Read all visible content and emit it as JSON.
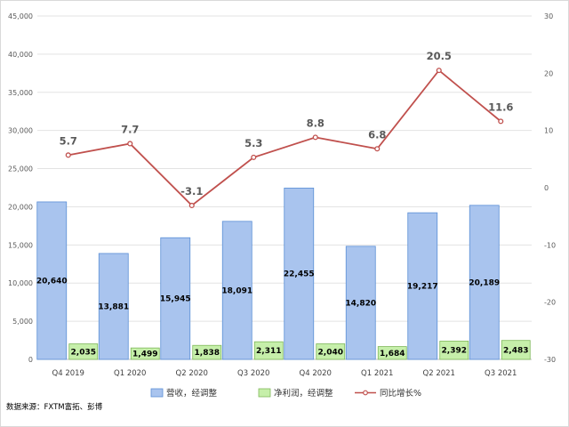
{
  "chart_data": {
    "type": "bar",
    "categories": [
      "Q4 2019",
      "Q1 2020",
      "Q2 2020",
      "Q3 2020",
      "Q4 2020",
      "Q1 2021",
      "Q2 2021",
      "Q3 2021"
    ],
    "series": [
      {
        "name": "营收，经调整",
        "kind": "bar",
        "axis": "left",
        "color": "#a9c4ee",
        "values": [
          20640,
          13881,
          15945,
          18091,
          22455,
          14820,
          19217,
          20189
        ],
        "labels": [
          "20,640",
          "13,881",
          "15,945",
          "18,091",
          "22,455",
          "14,820",
          "19,217",
          "20,189"
        ]
      },
      {
        "name": "净利润，经调整",
        "kind": "bar",
        "axis": "left",
        "color": "#c6efaa",
        "values": [
          2035,
          1499,
          1838,
          2311,
          2040,
          1684,
          2392,
          2483
        ],
        "labels": [
          "2,035",
          "1,499",
          "1,838",
          "2,311",
          "2,040",
          "1,684",
          "2,392",
          "2,483"
        ]
      },
      {
        "name": "同比增长%",
        "kind": "line",
        "axis": "right",
        "color": "#c0504d",
        "values": [
          5.7,
          7.7,
          -3.1,
          5.3,
          8.8,
          6.8,
          20.5,
          11.6
        ],
        "labels": [
          "5.7",
          "7.7",
          "-3.1",
          "5.3",
          "8.8",
          "6.8",
          "20.5",
          "11.6"
        ]
      }
    ],
    "y_left": {
      "ylim": [
        0,
        45000
      ],
      "ticks": [
        "0",
        "5,000",
        "10,000",
        "15,000",
        "20,000",
        "25,000",
        "30,000",
        "35,000",
        "40,000",
        "45,000"
      ]
    },
    "y_right": {
      "ylim": [
        -30,
        30
      ],
      "ticks": [
        "-30",
        "-20",
        "-10",
        "0",
        "10",
        "20",
        "30"
      ]
    },
    "grid": true,
    "legend": "bottom",
    "source": "数据来源：FXTM富拓、彭博"
  }
}
